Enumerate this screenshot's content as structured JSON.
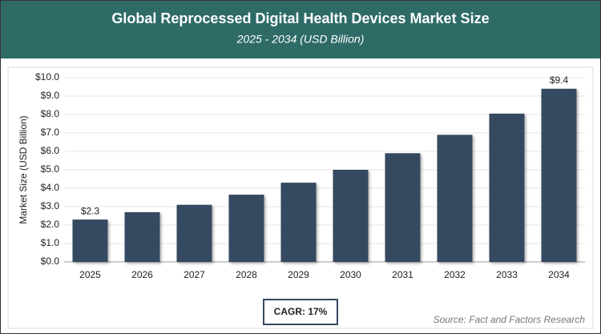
{
  "chart_data": {
    "type": "bar",
    "title": "Global Reprocessed Digital Health Devices Market Size",
    "subtitle": "2025 - 2034 (USD Billion)",
    "y_label": "Market Size (USD Billion)",
    "categories": [
      "2025",
      "2026",
      "2027",
      "2028",
      "2029",
      "2030",
      "2031",
      "2032",
      "2033",
      "2034"
    ],
    "values": [
      2.3,
      2.7,
      3.1,
      3.65,
      4.3,
      5.0,
      5.9,
      6.9,
      8.05,
      9.4
    ],
    "value_labels": [
      "$2.3",
      null,
      null,
      null,
      null,
      null,
      null,
      null,
      null,
      "$9.4"
    ],
    "color": "#364961",
    "ylim": [
      0,
      10
    ],
    "yticks": [
      {
        "value": 0,
        "label": "$0.0"
      },
      {
        "value": 1,
        "label": "$1.0"
      },
      {
        "value": 2,
        "label": "$2.0"
      },
      {
        "value": 3,
        "label": "$3.0"
      },
      {
        "value": 4,
        "label": "$4.0"
      },
      {
        "value": 5,
        "label": "$5.0"
      },
      {
        "value": 6,
        "label": "$6.0"
      },
      {
        "value": 7,
        "label": "$7.0"
      },
      {
        "value": 8,
        "label": "$8.0"
      },
      {
        "value": 9,
        "label": "$9.0"
      },
      {
        "value": 10,
        "label": "$10.0"
      }
    ],
    "grid": true,
    "cagr_label": "CAGR: 17%",
    "source": "Source: Fact and Factors Research"
  }
}
